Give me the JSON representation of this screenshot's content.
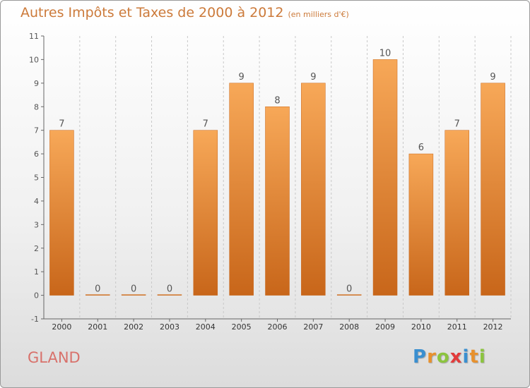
{
  "title": "Autres Impôts et Taxes de 2000 à 2012",
  "subtitle": "(en milliers d'€)",
  "commune": "GLAND",
  "logo": {
    "text": "Proxiti",
    "letters": [
      {
        "char": "P",
        "color": "#3a8fd0"
      },
      {
        "char": "r",
        "color": "#e8912d"
      },
      {
        "char": "o",
        "color": "#8cc43f"
      },
      {
        "char": "x",
        "color": "#e23b3b"
      },
      {
        "char": "i",
        "color": "#3a8fd0"
      },
      {
        "char": "t",
        "color": "#e8912d"
      },
      {
        "char": "i",
        "color": "#8cc43f"
      }
    ]
  },
  "colors": {
    "title": "#cc7a3a",
    "commune": "#d8716b",
    "bar_top": "#f7a858",
    "bar_bottom": "#c8661a",
    "grid": "#c8c8c8"
  },
  "chart_data": {
    "type": "bar",
    "title": "Autres Impôts et Taxes de 2000 à 2012",
    "subtitle": "(en milliers d'€)",
    "categories": [
      "2000",
      "2001",
      "2002",
      "2003",
      "2004",
      "2005",
      "2006",
      "2007",
      "2008",
      "2009",
      "2010",
      "2011",
      "2012"
    ],
    "values": [
      7,
      0,
      0,
      0,
      7,
      9,
      8,
      9,
      0,
      10,
      6,
      7,
      9
    ],
    "y_ticks": [
      "-1",
      "0",
      "1",
      "2",
      "3",
      "4",
      "5",
      "6",
      "7",
      "8",
      "9",
      "10",
      "11"
    ],
    "ylim": [
      -1,
      11
    ],
    "xlabel": "",
    "ylabel": "",
    "grid": "vertical-dashed"
  }
}
